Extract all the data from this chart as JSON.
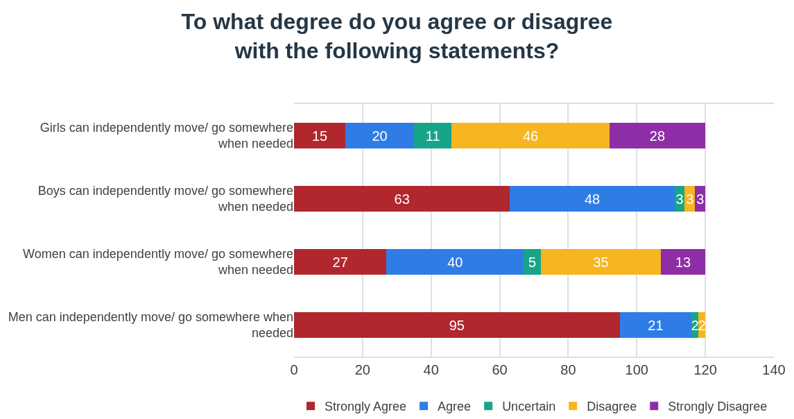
{
  "chart_data": {
    "type": "bar",
    "orientation": "horizontal",
    "stacked": true,
    "title": "To what degree do you agree or disagree with the following statements?",
    "categories": [
      "Girls can independently move/ go somewhere when needed",
      "Boys can independently move/ go somewhere when needed",
      "Women can independently move/ go somewhere when needed",
      "Men can independently move/ go somewhere when needed"
    ],
    "series": [
      {
        "name": "Strongly Agree",
        "color": "#b0272d",
        "values": [
          15,
          63,
          27,
          95
        ]
      },
      {
        "name": "Agree",
        "color": "#2f7ce6",
        "values": [
          20,
          48,
          40,
          21
        ]
      },
      {
        "name": "Uncertain",
        "color": "#17a589",
        "values": [
          11,
          3,
          5,
          2
        ]
      },
      {
        "name": "Disagree",
        "color": "#f7b51f",
        "values": [
          46,
          3,
          35,
          2
        ]
      },
      {
        "name": "Strongly Disagree",
        "color": "#8e2ea6",
        "values": [
          28,
          3,
          13,
          null
        ]
      }
    ],
    "xlim": [
      0,
      140
    ],
    "xticks": [
      0,
      20,
      40,
      60,
      80,
      100,
      120,
      140
    ],
    "grid": "x",
    "legend": "bottom",
    "data_labels": true
  }
}
